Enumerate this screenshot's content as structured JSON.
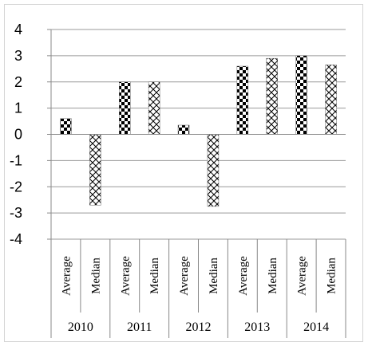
{
  "chart_data": {
    "type": "bar",
    "title": "",
    "xlabel": "",
    "ylabel": "",
    "ylim": [
      -4,
      4
    ],
    "yticks": [
      "4",
      "3",
      "2",
      "1",
      "0",
      "-1",
      "-2",
      "-3",
      "-4"
    ],
    "grid": true,
    "legend": "none",
    "groups": [
      "2010",
      "2011",
      "2012",
      "2013",
      "2014"
    ],
    "categories": [
      {
        "label": "Average",
        "group": "2010",
        "value": 0.6,
        "pattern": "checker"
      },
      {
        "label": "Median",
        "group": "2010",
        "value": -2.7,
        "pattern": "crosshatch"
      },
      {
        "label": "Average",
        "group": "2011",
        "value": 2.0,
        "pattern": "checker"
      },
      {
        "label": "Median",
        "group": "2011",
        "value": 2.0,
        "pattern": "crosshatch"
      },
      {
        "label": "Average",
        "group": "2012",
        "value": 0.35,
        "pattern": "checker"
      },
      {
        "label": "Median",
        "group": "2012",
        "value": -2.75,
        "pattern": "crosshatch"
      },
      {
        "label": "Average",
        "group": "2013",
        "value": 2.6,
        "pattern": "checker"
      },
      {
        "label": "Median",
        "group": "2013",
        "value": 2.9,
        "pattern": "crosshatch"
      },
      {
        "label": "Average",
        "group": "2014",
        "value": 3.0,
        "pattern": "checker"
      },
      {
        "label": "Median",
        "group": "2014",
        "value": 2.65,
        "pattern": "crosshatch"
      }
    ],
    "colors": {
      "gridline": "#999999",
      "axis": "#888888",
      "bar_ink": "#000000",
      "background": "#ffffff"
    }
  }
}
